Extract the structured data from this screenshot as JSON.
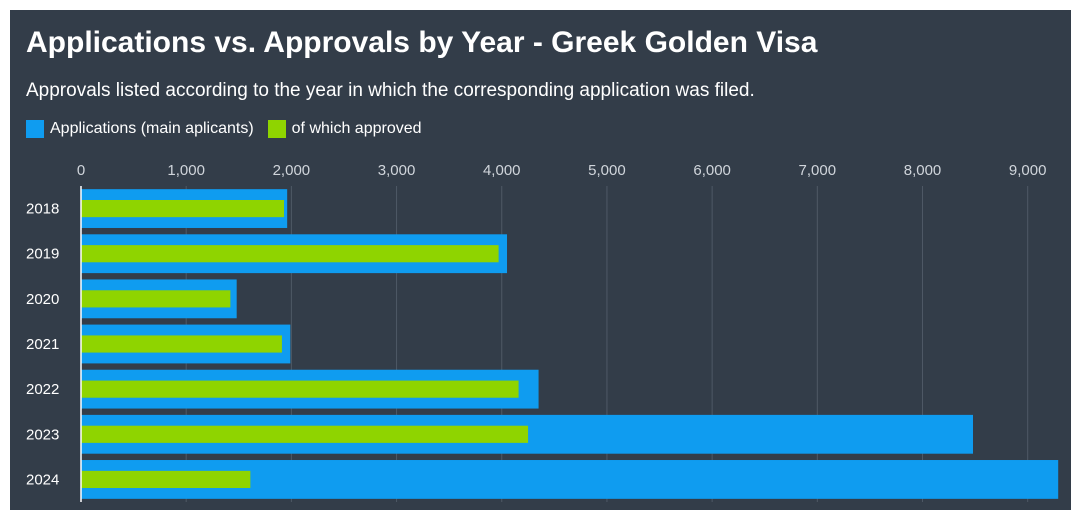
{
  "chart_data": {
    "type": "bar",
    "orientation": "horizontal",
    "title": "Applications vs. Approvals by Year - Greek Golden Visa",
    "subtitle": "Approvals listed according to the year in which the corresponding application was filed.",
    "categories": [
      "2018",
      "2019",
      "2020",
      "2021",
      "2022",
      "2023",
      "2024"
    ],
    "series": [
      {
        "name": "Applications (main aplicants)",
        "color": "#0f9cf0",
        "values": [
          1960,
          4050,
          1480,
          1990,
          4350,
          8480,
          9290
        ]
      },
      {
        "name": "of which approved",
        "color": "#8fd400",
        "values": [
          1930,
          3970,
          1420,
          1910,
          4160,
          4250,
          1610
        ]
      }
    ],
    "xlim": [
      0,
      9250
    ],
    "xticks": [
      "0",
      "1,000",
      "2,000",
      "3,000",
      "4,000",
      "5,000",
      "6,000",
      "7,000",
      "8,000",
      "9,000"
    ],
    "grid": true,
    "legend_position": "top-left",
    "background": "#333d49"
  }
}
